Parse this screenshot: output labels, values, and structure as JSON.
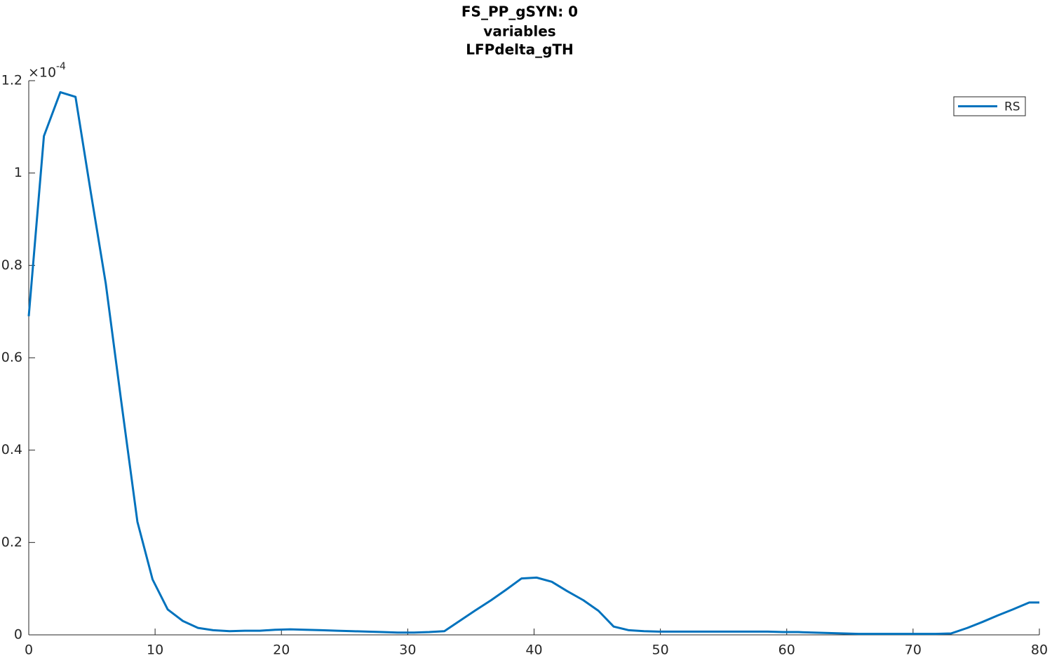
{
  "chart_data": {
    "type": "line",
    "title": [
      "FS_PP_gSYN: 0",
      "variables",
      "LFPdelta_gTH"
    ],
    "y_multiplier": "×10",
    "y_exponent": "-4",
    "x": [
      0,
      1.2,
      2.5,
      3.7,
      4.9,
      6.1,
      7.3,
      8.6,
      9.8,
      11.0,
      12.2,
      13.4,
      14.6,
      15.9,
      17.1,
      18.3,
      19.5,
      20.7,
      21.9,
      23.2,
      24.4,
      25.6,
      26.8,
      28.0,
      29.2,
      30.5,
      31.7,
      32.9,
      34.1,
      35.3,
      36.6,
      37.8,
      39.0,
      40.2,
      41.4,
      42.6,
      43.9,
      45.1,
      46.3,
      47.5,
      48.7,
      49.9,
      51.2,
      52.4,
      53.6,
      54.8,
      56.0,
      57.3,
      58.5,
      59.7,
      60.9,
      62.1,
      63.3,
      64.5,
      65.7,
      67.0,
      68.2,
      69.4,
      70.6,
      71.8,
      73.0,
      74.3,
      75.5,
      76.7,
      77.9,
      79.2,
      80
    ],
    "series": [
      {
        "name": "RS",
        "color": "#0072bd",
        "values": [
          0.69,
          1.08,
          1.175,
          1.165,
          0.96,
          0.76,
          0.51,
          0.245,
          0.12,
          0.055,
          0.03,
          0.015,
          0.01,
          0.008,
          0.009,
          0.009,
          0.011,
          0.012,
          0.011,
          0.01,
          0.009,
          0.008,
          0.007,
          0.006,
          0.005,
          0.005,
          0.006,
          0.008,
          0.03,
          0.052,
          0.075,
          0.098,
          0.122,
          0.124,
          0.115,
          0.095,
          0.075,
          0.052,
          0.018,
          0.01,
          0.008,
          0.007,
          0.007,
          0.007,
          0.007,
          0.007,
          0.007,
          0.007,
          0.007,
          0.006,
          0.006,
          0.005,
          0.004,
          0.003,
          0.002,
          0.002,
          0.002,
          0.002,
          0.002,
          0.002,
          0.003,
          0.015,
          0.028,
          0.042,
          0.055,
          0.07,
          0.07
        ]
      }
    ],
    "xlim": [
      0,
      80
    ],
    "xticks": [
      0,
      10,
      20,
      30,
      40,
      50,
      60,
      70,
      80
    ],
    "ylim": [
      0,
      1.2
    ],
    "yticks": [
      0,
      0.2,
      0.4,
      0.6,
      0.8,
      1,
      1.2
    ],
    "legend": "northeast"
  }
}
